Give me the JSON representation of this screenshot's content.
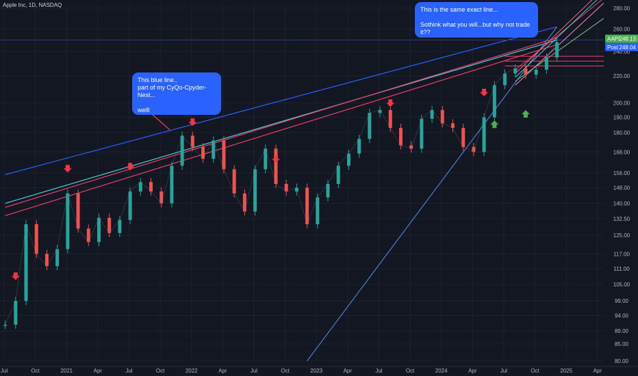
{
  "header": {
    "title": "Apple Inc, 1D, NASDAQ"
  },
  "callouts": {
    "blue_line": "This blue line..\npart of my CyQo-Cpyder-Nest...\n\nwelll",
    "same_line": "This is the same exact line...\n\nSothink what you will...but why not trade it??"
  },
  "chart_data": {
    "type": "line",
    "symbol": "AAPL",
    "y_axis": {
      "scale": "log",
      "range": [
        80,
        284
      ],
      "ticks": [
        "280.00",
        "260.00",
        "240.00",
        "220.00",
        "200.00",
        "190.00",
        "180.00",
        "168.00",
        "156.00",
        "148.00",
        "140.00",
        "132.50",
        "125.00",
        "117.00",
        "111.00",
        "105.00",
        "99.00",
        "94.00",
        "89.00",
        "85.00",
        "80.00"
      ]
    },
    "x_axis": {
      "ticks": [
        "Jul",
        "Oct",
        "2021",
        "Apr",
        "Jul",
        "Oct",
        "2022",
        "Apr",
        "Jul",
        "Oct",
        "2023",
        "Apr",
        "Jul",
        "Oct",
        "2024",
        "Apr",
        "Jul",
        "Oct",
        "2025",
        "Apr"
      ]
    },
    "price_series": {
      "name": "AAPL",
      "x": [
        "2020-07",
        "2020-08",
        "2020-09",
        "2020-10",
        "2020-11",
        "2020-12",
        "2021-01",
        "2021-02",
        "2021-03",
        "2021-04",
        "2021-05",
        "2021-06",
        "2021-07",
        "2021-08",
        "2021-09",
        "2021-10",
        "2021-11",
        "2021-12",
        "2022-01",
        "2022-02",
        "2022-03",
        "2022-04",
        "2022-05",
        "2022-06",
        "2022-07",
        "2022-08",
        "2022-09",
        "2022-10",
        "2022-11",
        "2022-12",
        "2023-01",
        "2023-02",
        "2023-03",
        "2023-04",
        "2023-05",
        "2023-06",
        "2023-07",
        "2023-08",
        "2023-09",
        "2023-10",
        "2023-11",
        "2023-12",
        "2024-01",
        "2024-02",
        "2024-03",
        "2024-04",
        "2024-05",
        "2024-06",
        "2024-07",
        "2024-08",
        "2024-09",
        "2024-10",
        "2024-11",
        "2024-12"
      ],
      "y": [
        91,
        99,
        130,
        117,
        112,
        119,
        145,
        128,
        122,
        133,
        126,
        132,
        146,
        151,
        146,
        140,
        160,
        178,
        171,
        164,
        175,
        158,
        145,
        136,
        158,
        170,
        150,
        146,
        148,
        130,
        143,
        150,
        160,
        167,
        176,
        193,
        195,
        183,
        172,
        170,
        189,
        195,
        186,
        183,
        171,
        168,
        190,
        213,
        222,
        226,
        221,
        225,
        235,
        248
      ]
    },
    "last_prices": [
      {
        "label": "AAPL",
        "value": "248.13",
        "color": "#4caf50"
      },
      {
        "label": "Post",
        "value": "248.04",
        "color": "#2962ff"
      }
    ],
    "markers": {
      "down": [
        "2020-08",
        "2021-01",
        "2021-07",
        "2022-01",
        "2022-09",
        "2023-08",
        "2024-05"
      ],
      "up": [
        "2024-06",
        "2024-09"
      ]
    },
    "colors": {
      "background": "#131722",
      "up": "#26a69a",
      "down": "#ef5350",
      "resistance": "#f23e6a",
      "cyan": "#4dd0e1",
      "blue": "#2962ff"
    }
  }
}
